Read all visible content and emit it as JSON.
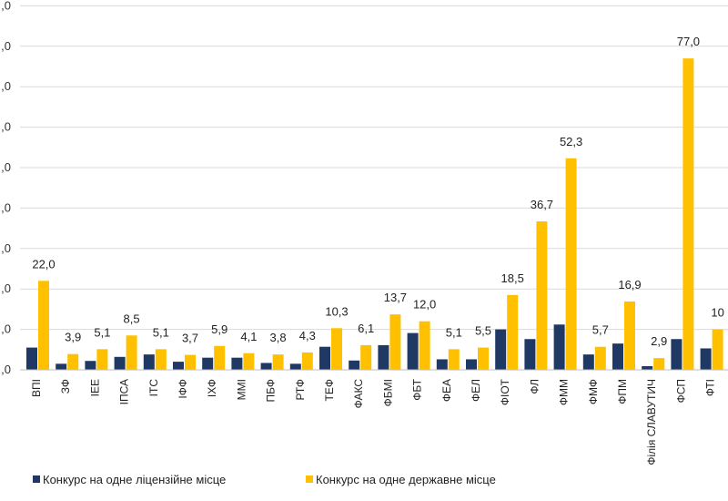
{
  "chart_data": {
    "type": "bar",
    "ylim": [
      0,
      90
    ],
    "ytick_values": [
      0,
      10,
      20,
      30,
      40,
      50,
      60,
      70,
      80,
      90
    ],
    "ytick_labels": [
      ",0",
      ",0",
      ",0",
      ",0",
      ",0",
      ",0",
      ",0",
      ",0",
      ",0",
      ",0"
    ],
    "grid": true,
    "legend_position": "bottom-left",
    "categories": [
      "ВПІ",
      "ЗФ",
      "ІЕЕ",
      "ІПСА",
      "ІТС",
      "ІФФ",
      "ІХФ",
      "ММІ",
      "ПБФ",
      "РТФ",
      "ТЕФ",
      "ФАКС",
      "ФБМІ",
      "ФБТ",
      "ФЕА",
      "ФЕЛ",
      "ФІОТ",
      "ФЛ",
      "ФММ",
      "ФМФ",
      "ФПМ",
      "Філія СЛАВУТИЧ",
      "ФСП",
      "ФТІ"
    ],
    "series": [
      {
        "name": "Конкурс на одне ліцензійне місце",
        "color": "#1f3864",
        "values": [
          5.5,
          1.5,
          2.2,
          3.2,
          3.8,
          2.0,
          3.0,
          3.0,
          1.7,
          1.5,
          5.7,
          2.3,
          6.1,
          9.1,
          2.6,
          2.6,
          10.0,
          7.6,
          11.2,
          3.8,
          6.5,
          0.9,
          7.6,
          5.3
        ]
      },
      {
        "name": "Конкурс на одне державне місце",
        "color": "#ffc000",
        "values": [
          22.0,
          3.9,
          5.1,
          8.5,
          5.1,
          3.7,
          5.9,
          4.1,
          3.8,
          4.3,
          10.3,
          6.1,
          13.7,
          12.0,
          5.1,
          5.5,
          18.5,
          36.7,
          52.3,
          5.7,
          16.9,
          2.9,
          77.0,
          10.0
        ]
      }
    ],
    "data_labels": [
      "22,0",
      "3,9",
      "5,1",
      "8,5",
      "5,1",
      "3,7",
      "5,9",
      "4,1",
      "3,8",
      "4,3",
      "10,3",
      "6,1",
      "13,7",
      "12,0",
      "5,1",
      "5,5",
      "18,5",
      "36,7",
      "52,3",
      "5,7",
      "16,9",
      "2,9",
      "77,0",
      "10"
    ]
  }
}
